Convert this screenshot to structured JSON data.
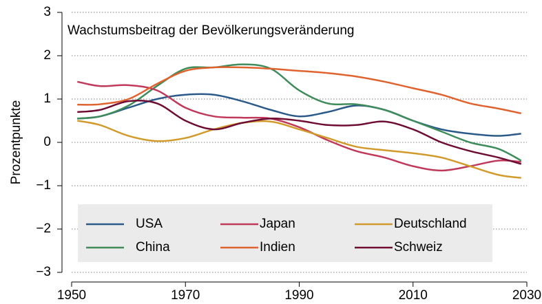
{
  "chart_data": {
    "type": "line",
    "title": "Wachstumsbeitrag der Bevölkerungsveränderung",
    "y_label": "Prozentpunkte",
    "x": [
      1951,
      1955,
      1960,
      1965,
      1970,
      1975,
      1980,
      1985,
      1990,
      1995,
      2000,
      2005,
      2010,
      2015,
      2020,
      2025,
      2029
    ],
    "series": [
      {
        "name": "USA",
        "color": "#2b5a8a",
        "values": [
          0.55,
          0.6,
          0.8,
          1.0,
          1.1,
          1.1,
          0.95,
          0.75,
          0.6,
          0.7,
          0.85,
          0.75,
          0.5,
          0.3,
          0.2,
          0.15,
          0.2
        ]
      },
      {
        "name": "China",
        "color": "#3d8c5a",
        "values": [
          0.55,
          0.6,
          0.85,
          1.3,
          1.7,
          1.73,
          1.8,
          1.7,
          1.2,
          0.9,
          0.88,
          0.75,
          0.5,
          0.25,
          0,
          -0.15,
          -0.42
        ]
      },
      {
        "name": "Japan",
        "color": "#c0395a",
        "values": [
          1.4,
          1.3,
          1.32,
          1.2,
          0.8,
          0.6,
          0.57,
          0.55,
          0.35,
          0.05,
          -0.2,
          -0.35,
          -0.55,
          -0.65,
          -0.55,
          -0.42,
          -0.45
        ]
      },
      {
        "name": "Indien",
        "color": "#e0622e",
        "values": [
          0.87,
          0.88,
          1.0,
          1.35,
          1.65,
          1.73,
          1.73,
          1.7,
          1.65,
          1.6,
          1.52,
          1.4,
          1.25,
          1.1,
          0.9,
          0.78,
          0.67
        ]
      },
      {
        "name": "Deutschland",
        "color": "#d19a2a",
        "values": [
          0.5,
          0.4,
          0.15,
          0.03,
          0.1,
          0.3,
          0.45,
          0.48,
          0.3,
          0.1,
          -0.1,
          -0.18,
          -0.25,
          -0.35,
          -0.55,
          -0.75,
          -0.82
        ]
      },
      {
        "name": "Schweiz",
        "color": "#6e0c33",
        "values": [
          0.7,
          0.75,
          0.95,
          0.9,
          0.5,
          0.3,
          0.45,
          0.55,
          0.5,
          0.4,
          0.4,
          0.48,
          0.3,
          0,
          -0.2,
          -0.35,
          -0.5
        ]
      }
    ],
    "xlim": [
      1950,
      2030
    ],
    "xticks": [
      1950,
      1970,
      1990,
      2010,
      2030
    ],
    "ylim": [
      -3,
      3
    ],
    "yticks": [
      {
        "value": -3,
        "label": "−3"
      },
      {
        "value": -2,
        "label": "−2"
      },
      {
        "value": -1,
        "label": "−1"
      },
      0,
      1,
      2,
      3
    ],
    "grid": true
  }
}
